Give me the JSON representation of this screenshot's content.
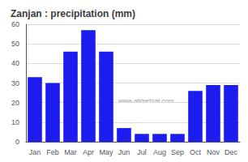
{
  "chart_data": {
    "type": "bar",
    "title": "Zanjan : precipitation (mm)",
    "categories": [
      "Jan",
      "Feb",
      "Mar",
      "Apr",
      "May",
      "Jun",
      "Jul",
      "Aug",
      "Sep",
      "Oct",
      "Nov",
      "Dec"
    ],
    "values": [
      33,
      30,
      46,
      57,
      46,
      7,
      4,
      4,
      4,
      26,
      29,
      29
    ],
    "color": "#1c1cee",
    "ylim": [
      0,
      60
    ],
    "yticks": [
      0,
      10,
      20,
      30,
      40,
      50,
      60
    ],
    "grid": true,
    "annotation": "www.allmetsat.com"
  }
}
